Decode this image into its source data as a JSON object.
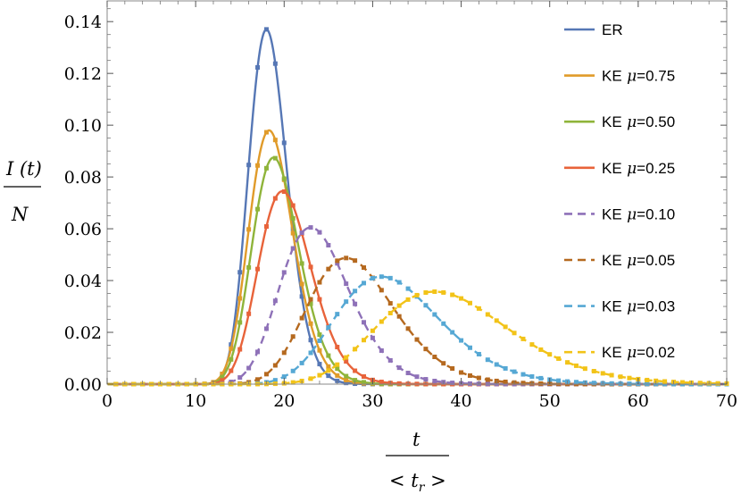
{
  "chart_data": {
    "type": "line",
    "title": "",
    "xlabel": {
      "numerator": "t",
      "denominator_left": "< t",
      "denominator_sub": "r",
      "denominator_right": " >"
    },
    "ylabel": {
      "numerator": "I (t)",
      "denominator": "N"
    },
    "xlim": [
      0,
      70
    ],
    "ylim": [
      0,
      0.148
    ],
    "xticks": [
      0,
      10,
      20,
      30,
      40,
      50,
      60,
      70
    ],
    "xtick_labels": [
      "0",
      "10",
      "20",
      "30",
      "40",
      "50",
      "60",
      "70"
    ],
    "yticks": [
      0,
      0.02,
      0.04,
      0.06,
      0.08,
      0.1,
      0.12,
      0.14
    ],
    "ytick_labels": [
      "0.00",
      "0.02",
      "0.04",
      "0.06",
      "0.08",
      "0.10",
      "0.12",
      "0.14"
    ],
    "legend_position": "right",
    "curve_model": "lognormal",
    "series": [
      {
        "name": "ER",
        "mu_label": "",
        "color": "#5677b5",
        "dashed": false,
        "peak_x": 18.0,
        "peak_y": 0.137,
        "sigma": 0.12
      },
      {
        "name": "KE",
        "mu_label": "=0.75",
        "color": "#e09b2a",
        "dashed": false,
        "peak_x": 18.3,
        "peak_y": 0.098,
        "sigma": 0.135
      },
      {
        "name": "KE",
        "mu_label": "=0.50",
        "color": "#8fb43a",
        "dashed": false,
        "peak_x": 18.8,
        "peak_y": 0.0875,
        "sigma": 0.14
      },
      {
        "name": "KE",
        "mu_label": "=0.25",
        "color": "#e8633a",
        "dashed": false,
        "peak_x": 19.8,
        "peak_y": 0.0745,
        "sigma": 0.15
      },
      {
        "name": "KE",
        "mu_label": "=0.10",
        "color": "#8e71b8",
        "dashed": true,
        "peak_x": 23.0,
        "peak_y": 0.0605,
        "sigma": 0.17
      },
      {
        "name": "KE",
        "mu_label": "=0.05",
        "color": "#b5691f",
        "dashed": true,
        "peak_x": 27.0,
        "peak_y": 0.0487,
        "sigma": 0.18
      },
      {
        "name": "KE",
        "mu_label": "=0.03",
        "color": "#56a8d4",
        "dashed": true,
        "peak_x": 31.0,
        "peak_y": 0.0415,
        "sigma": 0.19
      },
      {
        "name": "KE",
        "mu_label": "=0.02",
        "color": "#f2c318",
        "dashed": true,
        "peak_x": 37.0,
        "peak_y": 0.0357,
        "sigma": 0.2
      }
    ],
    "mu_symbol": "μ"
  }
}
